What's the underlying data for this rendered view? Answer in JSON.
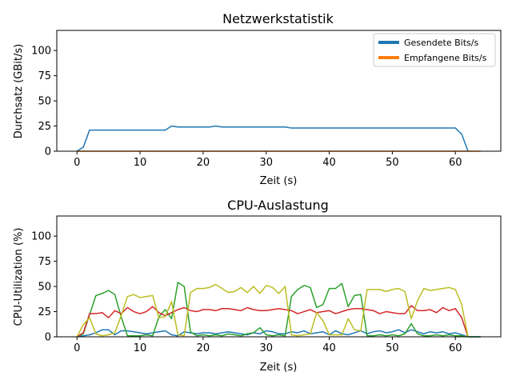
{
  "chart_data": [
    {
      "type": "line",
      "title": "Netzwerkstatistik",
      "xlabel": "Zeit (s)",
      "ylabel": "Durchsatz (GBit/s)",
      "xlim": [
        -3.2,
        67.2
      ],
      "ylim": [
        0,
        120
      ],
      "xticks": [
        0,
        10,
        20,
        30,
        40,
        50,
        60
      ],
      "yticks": [
        0,
        25,
        50,
        75,
        100
      ],
      "legend_position": "top-right",
      "series": [
        {
          "name": "Gesendete Bits/s",
          "color": "#1f77b4",
          "x": [
            0,
            1,
            2,
            3,
            4,
            5,
            6,
            7,
            8,
            9,
            10,
            11,
            12,
            13,
            14,
            15,
            16,
            17,
            18,
            19,
            20,
            21,
            22,
            23,
            24,
            25,
            26,
            27,
            28,
            29,
            30,
            31,
            32,
            33,
            34,
            35,
            36,
            37,
            38,
            39,
            40,
            41,
            42,
            43,
            44,
            45,
            46,
            47,
            48,
            49,
            50,
            51,
            52,
            53,
            54,
            55,
            56,
            57,
            58,
            59,
            60,
            61,
            62
          ],
          "y": [
            0,
            4,
            21,
            21,
            21,
            21,
            21,
            21,
            21,
            21,
            21,
            21,
            21,
            21,
            21,
            25,
            24,
            24,
            24,
            24,
            24,
            24,
            25,
            24,
            24,
            24,
            24,
            24,
            24,
            24,
            24,
            24,
            24,
            24,
            23,
            23,
            23,
            23,
            23,
            23,
            23,
            23,
            23,
            23,
            23,
            23,
            23,
            23,
            23,
            23,
            23,
            23,
            23,
            23,
            23,
            23,
            23,
            23,
            23,
            23,
            23,
            17,
            0
          ]
        },
        {
          "name": "Empfangene Bits/s",
          "color": "#ff7f0e",
          "x": [
            0,
            4,
            8,
            12,
            16,
            20,
            24,
            28,
            32,
            36,
            40,
            44,
            48,
            52,
            56,
            60,
            64
          ],
          "y": [
            0,
            0,
            0,
            0,
            0,
            0,
            0,
            0,
            0,
            0,
            0,
            0,
            0,
            0,
            0,
            0,
            0
          ]
        }
      ]
    },
    {
      "type": "line",
      "title": "CPU-Auslastung",
      "xlabel": "Zeit (s)",
      "ylabel": "CPU-Utilization (%)",
      "xlim": [
        -3.2,
        67.2
      ],
      "ylim": [
        0,
        120
      ],
      "xticks": [
        0,
        10,
        20,
        30,
        40,
        50,
        60
      ],
      "yticks": [
        0,
        25,
        50,
        75,
        100
      ],
      "series": [
        {
          "color": "#1f77b4",
          "x": [
            0,
            1,
            2,
            3,
            4,
            5,
            6,
            7,
            8,
            9,
            10,
            11,
            12,
            13,
            14,
            15,
            16,
            17,
            18,
            19,
            20,
            21,
            22,
            23,
            24,
            25,
            26,
            27,
            28,
            29,
            30,
            31,
            32,
            33,
            34,
            35,
            36,
            37,
            38,
            39,
            40,
            41,
            42,
            43,
            44,
            45,
            46,
            47,
            48,
            49,
            50,
            51,
            52,
            53,
            54,
            55,
            56,
            57,
            58,
            59,
            60,
            61,
            62,
            63,
            64
          ],
          "y": [
            0,
            1,
            2,
            4,
            7,
            7,
            2,
            6,
            6,
            5,
            4,
            3,
            4,
            5,
            6,
            2,
            1,
            5,
            4,
            3,
            4,
            4,
            3,
            4,
            5,
            4,
            3,
            2,
            4,
            3,
            6,
            5,
            3,
            3,
            5,
            4,
            6,
            3,
            4,
            5,
            2,
            6,
            3,
            2,
            4,
            6,
            3,
            5,
            6,
            4,
            5,
            7,
            4,
            7,
            5,
            3,
            5,
            4,
            5,
            3,
            4,
            2,
            0,
            0,
            0
          ]
        },
        {
          "color": "#2ca02c",
          "x": [
            0,
            1,
            2,
            3,
            4,
            5,
            6,
            7,
            8,
            9,
            10,
            11,
            12,
            13,
            14,
            15,
            16,
            17,
            18,
            19,
            20,
            21,
            22,
            23,
            24,
            25,
            26,
            27,
            28,
            29,
            30,
            31,
            32,
            33,
            34,
            35,
            36,
            37,
            38,
            39,
            40,
            41,
            42,
            43,
            44,
            45,
            46,
            47,
            48,
            49,
            50,
            51,
            52,
            53,
            54,
            55,
            56,
            57,
            58,
            59,
            60,
            61,
            62,
            63,
            64
          ],
          "y": [
            0,
            3,
            22,
            41,
            43,
            46,
            42,
            20,
            1,
            1,
            1,
            2,
            1,
            20,
            27,
            18,
            54,
            50,
            5,
            1,
            2,
            1,
            2,
            1,
            3,
            2,
            1,
            3,
            4,
            9,
            2,
            1,
            2,
            1,
            40,
            47,
            51,
            49,
            29,
            32,
            48,
            48,
            53,
            30,
            41,
            42,
            1,
            1,
            2,
            1,
            2,
            1,
            3,
            13,
            3,
            1,
            1,
            2,
            1,
            2,
            1,
            1,
            0,
            0,
            0
          ]
        },
        {
          "color": "#d62728",
          "x": [
            0,
            1,
            2,
            3,
            4,
            5,
            6,
            7,
            8,
            9,
            10,
            11,
            12,
            13,
            14,
            15,
            16,
            17,
            18,
            19,
            20,
            21,
            22,
            23,
            24,
            25,
            26,
            27,
            28,
            29,
            30,
            31,
            32,
            33,
            34,
            35,
            36,
            37,
            38,
            39,
            40,
            41,
            42,
            43,
            44,
            45,
            46,
            47,
            48,
            49,
            50,
            51,
            52,
            53,
            54,
            55,
            56,
            57,
            58,
            59,
            60,
            61,
            62
          ],
          "y": [
            0,
            4,
            23,
            23,
            24,
            19,
            26,
            23,
            29,
            25,
            23,
            25,
            30,
            24,
            21,
            24,
            27,
            29,
            26,
            25,
            27,
            27,
            26,
            28,
            28,
            27,
            26,
            29,
            27,
            26,
            26,
            27,
            28,
            27,
            26,
            23,
            25,
            27,
            24,
            25,
            26,
            23,
            25,
            27,
            28,
            28,
            27,
            26,
            23,
            25,
            24,
            23,
            23,
            31,
            26,
            26,
            27,
            24,
            29,
            26,
            28,
            19,
            0
          ]
        },
        {
          "color": "#bcbd22",
          "x": [
            0,
            1,
            2,
            3,
            4,
            5,
            6,
            7,
            8,
            9,
            10,
            11,
            12,
            13,
            14,
            15,
            16,
            17,
            18,
            19,
            20,
            21,
            22,
            23,
            24,
            25,
            26,
            27,
            28,
            29,
            30,
            31,
            32,
            33,
            34,
            35,
            36,
            37,
            38,
            39,
            40,
            41,
            42,
            43,
            44,
            45,
            46,
            47,
            48,
            49,
            50,
            51,
            52,
            53,
            54,
            55,
            56,
            57,
            58,
            59,
            60,
            61,
            62
          ],
          "y": [
            0,
            12,
            19,
            3,
            1,
            2,
            4,
            21,
            40,
            42,
            39,
            40,
            41,
            19,
            20,
            35,
            2,
            1,
            44,
            48,
            48,
            49,
            52,
            48,
            44,
            45,
            49,
            44,
            50,
            43,
            51,
            49,
            43,
            50,
            2,
            1,
            2,
            3,
            24,
            16,
            2,
            2,
            2,
            18,
            7,
            6,
            47,
            47,
            47,
            45,
            47,
            48,
            45,
            18,
            36,
            48,
            46,
            47,
            48,
            49,
            47,
            32,
            0
          ]
        }
      ]
    }
  ]
}
